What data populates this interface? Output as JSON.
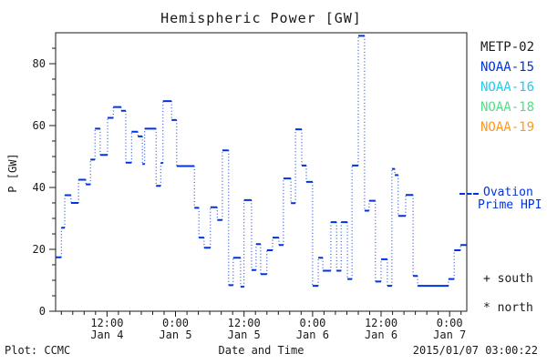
{
  "title": "Hemispheric Power [GW]",
  "footer": {
    "left": "Plot: CCMC",
    "center": "Date and Time",
    "right": "2015/01/07 03:00:22"
  },
  "legend": {
    "satellites": [
      {
        "label": "METP-02",
        "color": "#1a1a1a"
      },
      {
        "label": "NOAA-15",
        "color": "#0033dd"
      },
      {
        "label": "NOAA-16",
        "color": "#22ccee"
      },
      {
        "label": "NOAA-18",
        "color": "#55dd88"
      },
      {
        "label": "NOAA-19",
        "color": "#ff9922"
      }
    ],
    "ovation": {
      "line1": "Ovation",
      "line2": "Prime HPI",
      "color": "#0033dd"
    },
    "south": {
      "marker": "+",
      "label": "south"
    },
    "north": {
      "marker": "*",
      "label": "north"
    }
  },
  "chart_data": {
    "type": "line",
    "title": "Hemispheric Power [GW]",
    "xlabel": "Date and Time",
    "ylabel": "P [GW]",
    "ylim": [
      0,
      90
    ],
    "y_major_ticks": [
      0,
      20,
      40,
      60,
      80
    ],
    "y_minor_step": 5,
    "x_range_hours": [
      3,
      75
    ],
    "x_axis_note": "hours since 2015-01-04 00:00 UTC; axis spans Jan 4 03:00 to Jan 7 03:00",
    "x_minor_step_hours": 2,
    "grid": false,
    "legend_position": "right",
    "x_ticks": [
      {
        "t": 12,
        "time": "12:00",
        "date": "Jan 4"
      },
      {
        "t": 24,
        "time": "0:00",
        "date": "Jan 5"
      },
      {
        "t": 36,
        "time": "12:00",
        "date": "Jan 5"
      },
      {
        "t": 48,
        "time": "0:00",
        "date": "Jan 6"
      },
      {
        "t": 60,
        "time": "12:00",
        "date": "Jan 6"
      },
      {
        "t": 72,
        "time": "0:00",
        "date": "Jan 7"
      }
    ],
    "series": [
      {
        "name": "Ovation Prime HPI",
        "color": "#0033dd",
        "style": "stepped-dotted",
        "points_format": "[hours_since_Jan4_00UTC, power_GW]",
        "points": [
          [
            3.0,
            17.4
          ],
          [
            4.0,
            27.0
          ],
          [
            4.6,
            37.5
          ],
          [
            5.7,
            35.0
          ],
          [
            7.0,
            42.5
          ],
          [
            8.3,
            41.0
          ],
          [
            9.1,
            49.0
          ],
          [
            9.9,
            59.0
          ],
          [
            10.8,
            50.5
          ],
          [
            12.1,
            62.5
          ],
          [
            13.1,
            66.0
          ],
          [
            14.5,
            64.8
          ],
          [
            15.3,
            48.0
          ],
          [
            16.3,
            58.0
          ],
          [
            17.4,
            56.5
          ],
          [
            18.2,
            47.6
          ],
          [
            18.6,
            59.0
          ],
          [
            20.6,
            40.5
          ],
          [
            21.4,
            47.9
          ],
          [
            21.8,
            67.9
          ],
          [
            23.3,
            61.8
          ],
          [
            24.2,
            46.9
          ],
          [
            27.3,
            33.4
          ],
          [
            28.1,
            23.8
          ],
          [
            29.0,
            20.5
          ],
          [
            30.1,
            33.6
          ],
          [
            31.3,
            29.5
          ],
          [
            32.2,
            52.0
          ],
          [
            33.3,
            8.4
          ],
          [
            34.1,
            17.3
          ],
          [
            35.4,
            7.9
          ],
          [
            36.0,
            35.9
          ],
          [
            37.3,
            13.3
          ],
          [
            38.1,
            21.7
          ],
          [
            38.9,
            12.0
          ],
          [
            40.0,
            19.7
          ],
          [
            41.0,
            23.8
          ],
          [
            42.1,
            21.4
          ],
          [
            42.9,
            42.9
          ],
          [
            44.2,
            34.9
          ],
          [
            45.0,
            58.8
          ],
          [
            46.1,
            47.1
          ],
          [
            46.9,
            41.8
          ],
          [
            48.0,
            8.2
          ],
          [
            49.0,
            17.3
          ],
          [
            49.8,
            13.1
          ],
          [
            51.2,
            28.8
          ],
          [
            52.2,
            13.1
          ],
          [
            53.0,
            28.8
          ],
          [
            54.1,
            10.4
          ],
          [
            54.9,
            47.1
          ],
          [
            56.0,
            89.0
          ],
          [
            57.1,
            32.5
          ],
          [
            57.9,
            35.7
          ],
          [
            59.0,
            9.6
          ],
          [
            60.0,
            16.8
          ],
          [
            61.1,
            8.2
          ],
          [
            61.9,
            46.0
          ],
          [
            62.4,
            44.0
          ],
          [
            63.0,
            30.8
          ],
          [
            64.3,
            37.6
          ],
          [
            65.6,
            11.4
          ],
          [
            66.4,
            8.2
          ],
          [
            71.8,
            10.4
          ],
          [
            72.8,
            19.7
          ],
          [
            73.9,
            21.4
          ]
        ]
      }
    ]
  }
}
